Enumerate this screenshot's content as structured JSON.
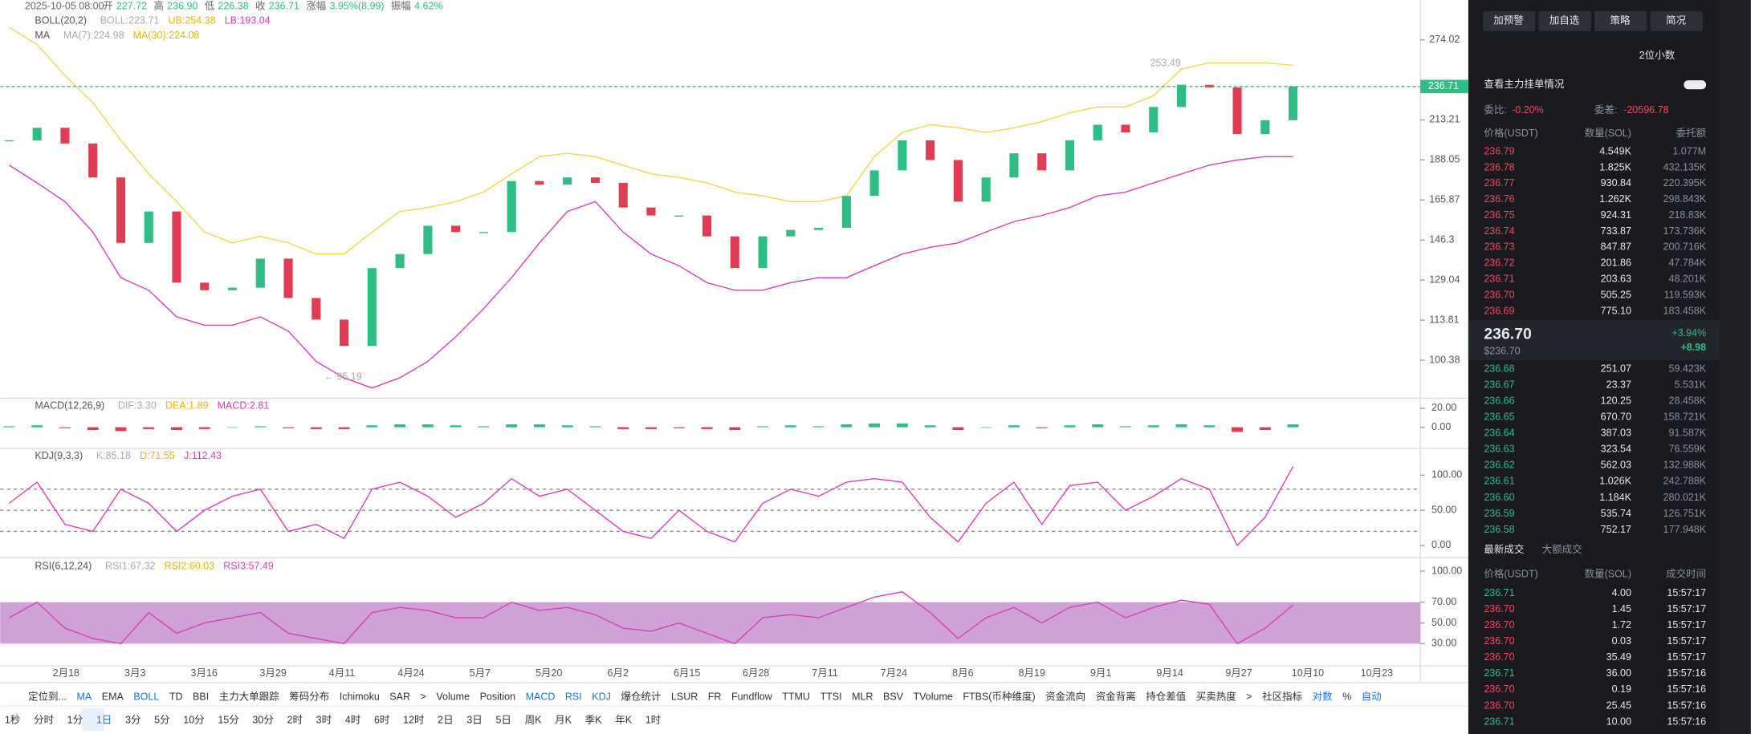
{
  "header": {
    "date": "2025-10-05 08:00",
    "fields": [
      {
        "label": "开",
        "value": "227.72"
      },
      {
        "label": "高",
        "value": "236.90"
      },
      {
        "label": "低",
        "value": "226.38"
      },
      {
        "label": "收",
        "value": "236.71"
      },
      {
        "label": "涨幅",
        "value": "3.95%(8.99)"
      },
      {
        "label": "振幅",
        "value": "4.62%"
      }
    ]
  },
  "indicators": [
    {
      "name": "BOLL(20,2)",
      "items": [
        {
          "text": "BOLL:223.71",
          "color": "#aaaaaa"
        },
        {
          "text": "UB:254.38",
          "color": "#e6b800"
        },
        {
          "text": "LB:193.04",
          "color": "#d63fb8"
        }
      ]
    },
    {
      "name": "MA",
      "items": [
        {
          "text": "MA(7):224.98",
          "color": "#aaaaaa"
        },
        {
          "text": "MA(30):224.08",
          "color": "#e6b800"
        }
      ]
    },
    {
      "name": "MACD(12,26,9)",
      "items": [
        {
          "text": "DIF:3.30",
          "color": "#aaaaaa"
        },
        {
          "text": "DEA:1.89",
          "color": "#e6b800"
        },
        {
          "text": "MACD:2.81",
          "color": "#d63fb8"
        }
      ]
    },
    {
      "name": "KDJ(9,3,3)",
      "items": [
        {
          "text": "K:85.18",
          "color": "#aaaaaa"
        },
        {
          "text": "D:71.55",
          "color": "#e6b800"
        },
        {
          "text": "J:112.43",
          "color": "#d63fb8"
        }
      ]
    },
    {
      "name": "RSI(6,12,24)",
      "items": [
        {
          "text": "RSI1:67.32",
          "color": "#aaaaaa"
        },
        {
          "text": "RSI2:60.03",
          "color": "#e6b800"
        },
        {
          "text": "RSI3:57.49",
          "color": "#d63fb8"
        }
      ]
    }
  ],
  "chart_data": {
    "type": "candlestick",
    "log_scale": true,
    "ylim": [
      89.1,
      297.7
    ],
    "yticks": [
      274.02,
      213.21,
      188.05,
      165.87,
      146.3,
      129.04,
      113.81,
      100.38
    ],
    "closes": [
      200,
      208,
      198,
      178,
      145,
      160,
      128,
      125,
      126,
      138,
      122,
      114,
      105,
      134,
      140,
      153,
      150,
      150,
      176,
      174,
      178,
      175,
      162,
      158,
      158,
      148,
      134,
      148,
      151,
      152,
      168,
      182,
      200,
      188,
      165,
      178,
      192,
      182,
      200,
      210,
      205,
      222,
      238,
      236,
      204,
      213,
      236.71
    ],
    "boll_upper": [
      285,
      270,
      245,
      225,
      200,
      180,
      165,
      150,
      145,
      148,
      145,
      140,
      140,
      150,
      160,
      162,
      165,
      170,
      180,
      190,
      192,
      190,
      185,
      180,
      178,
      175,
      170,
      168,
      165,
      165,
      168,
      190,
      205,
      210,
      208,
      205,
      208,
      212,
      218,
      222,
      222,
      230,
      250,
      255,
      255,
      255,
      253
    ],
    "boll_lower": [
      185,
      175,
      165,
      150,
      130,
      125,
      115,
      112,
      112,
      115,
      110,
      100,
      95,
      92,
      95,
      100,
      108,
      118,
      130,
      145,
      160,
      165,
      150,
      140,
      135,
      128,
      125,
      125,
      128,
      130,
      130,
      135,
      140,
      143,
      145,
      150,
      155,
      158,
      162,
      168,
      170,
      175,
      180,
      185,
      188,
      190,
      190
    ],
    "up_color": "#2ebd85",
    "down_color": "#e03c54",
    "price_line": 236.71,
    "annotations": [
      "253.49",
      "← 95.19"
    ],
    "dates": [
      "2月18",
      "3月3",
      "3月16",
      "3月29",
      "4月11",
      "4月24",
      "5月7",
      "5月20",
      "6月2",
      "6月15",
      "6月28",
      "7月11",
      "7月24",
      "8月6",
      "8月19",
      "9月1",
      "9月14",
      "9月27",
      "10月10",
      "10月23"
    ]
  },
  "macd": {
    "ylim": [
      -22.4,
      30.6
    ],
    "yticks": [
      {
        "value": 20,
        "label": "20.00"
      },
      {
        "value": 0,
        "label": "0.00"
      }
    ],
    "hist": [
      1,
      2,
      -1,
      -3,
      -4,
      -2,
      -3,
      -2,
      0,
      1,
      -1,
      -2,
      -2,
      2,
      3,
      3,
      2,
      1,
      3,
      3,
      2,
      1,
      -2,
      -2,
      -1,
      -2,
      -3,
      1,
      2,
      1,
      3,
      4,
      4,
      2,
      -3,
      0,
      2,
      -1,
      2,
      3,
      1,
      2,
      3,
      2,
      -5,
      -3,
      3
    ]
  },
  "kdj": {
    "ylim": [
      -17.5,
      138
    ],
    "yticks": [
      {
        "value": 100,
        "label": "100.00"
      },
      {
        "value": 50,
        "label": "50.00"
      },
      {
        "value": 0,
        "label": "0.00"
      }
    ],
    "dashed_levels": [
      80,
      50,
      20
    ],
    "j": [
      60,
      90,
      30,
      20,
      80,
      60,
      20,
      50,
      70,
      80,
      20,
      30,
      10,
      80,
      90,
      70,
      40,
      60,
      95,
      70,
      80,
      50,
      20,
      10,
      50,
      20,
      5,
      60,
      80,
      70,
      90,
      95,
      90,
      40,
      5,
      60,
      90,
      30,
      85,
      90,
      50,
      70,
      95,
      80,
      0,
      40,
      112.43
    ]
  },
  "rsi": {
    "ylim": [
      8.5,
      112.9
    ],
    "yticks": [
      {
        "value": 100,
        "label": "100.00"
      },
      {
        "value": 70,
        "label": "70.00"
      },
      {
        "value": 50,
        "label": "50.00"
      },
      {
        "value": 30,
        "label": "30.00"
      }
    ],
    "band": [
      30,
      70
    ],
    "rsi6": [
      55,
      70,
      45,
      35,
      30,
      60,
      40,
      50,
      55,
      60,
      40,
      35,
      30,
      60,
      65,
      62,
      55,
      55,
      70,
      62,
      65,
      58,
      45,
      42,
      50,
      40,
      30,
      55,
      58,
      55,
      65,
      75,
      80,
      60,
      35,
      55,
      65,
      50,
      65,
      70,
      55,
      65,
      72,
      68,
      30,
      45,
      67.32
    ]
  },
  "toolbar": {
    "items": [
      {
        "label": "定位到..."
      },
      {
        "label": "MA",
        "active": true
      },
      {
        "label": "EMA"
      },
      {
        "label": "BOLL",
        "active": true
      },
      {
        "label": "TD"
      },
      {
        "label": "BBI"
      },
      {
        "label": "主力大单跟踪"
      },
      {
        "label": "筹码分布"
      },
      {
        "label": "Ichimoku"
      },
      {
        "label": "SAR"
      },
      {
        "label": ">"
      },
      {
        "label": "Volume"
      },
      {
        "label": "Position"
      },
      {
        "label": "MACD",
        "active": true
      },
      {
        "label": "RSI",
        "active": true
      },
      {
        "label": "KDJ",
        "active": true
      },
      {
        "label": "爆仓统计"
      },
      {
        "label": "LSUR"
      },
      {
        "label": "FR"
      },
      {
        "label": "Fundflow"
      },
      {
        "label": "TTMU"
      },
      {
        "label": "TTSI"
      },
      {
        "label": "MLR"
      },
      {
        "label": "BSV"
      },
      {
        "label": "TVolume"
      },
      {
        "label": "FTBS(币种维度)"
      },
      {
        "label": "资金流向"
      },
      {
        "label": "资金背离"
      },
      {
        "label": "持仓差值"
      },
      {
        "label": "买卖热度"
      },
      {
        "label": ">"
      },
      {
        "label": "社区指标"
      },
      {
        "label": "对数",
        "active": true
      },
      {
        "label": "%"
      },
      {
        "label": "自动",
        "active": true
      }
    ],
    "intervals": [
      {
        "label": "1秒"
      },
      {
        "label": "分时"
      },
      {
        "label": "1分"
      },
      {
        "label": "1日",
        "active": true
      },
      {
        "label": "3分"
      },
      {
        "label": "5分"
      },
      {
        "label": "10分"
      },
      {
        "label": "15分"
      },
      {
        "label": "30分"
      },
      {
        "label": "2时"
      },
      {
        "label": "3时"
      },
      {
        "label": "4时"
      },
      {
        "label": "6时"
      },
      {
        "label": "12时"
      },
      {
        "label": "2日"
      },
      {
        "label": "3日"
      },
      {
        "label": "5日"
      },
      {
        "label": "周K"
      },
      {
        "label": "月K"
      },
      {
        "label": "季K"
      },
      {
        "label": "年K"
      },
      {
        "label": "1时"
      }
    ]
  },
  "panel": {
    "buttons": [
      "加预警",
      "加自选",
      "策略",
      "简况"
    ],
    "decimals": "2位小数",
    "depth_link": "查看主力挂单情况",
    "ratio_label": "委比:",
    "ratio": "-0.20%",
    "diff_label": "委差:",
    "diff": "-20596.78",
    "book_headers": [
      "价格(USDT)",
      "数量(SOL)",
      "委托额"
    ],
    "asks": [
      [
        "236.79",
        "4.549K",
        "1.077M"
      ],
      [
        "236.78",
        "1.825K",
        "432.135K"
      ],
      [
        "236.77",
        "930.84",
        "220.395K"
      ],
      [
        "236.76",
        "1.262K",
        "298.843K"
      ],
      [
        "236.75",
        "924.31",
        "218.83K"
      ],
      [
        "236.74",
        "733.87",
        "173.736K"
      ],
      [
        "236.73",
        "847.87",
        "200.716K"
      ],
      [
        "236.72",
        "201.86",
        "47.784K"
      ],
      [
        "236.71",
        "203.63",
        "48.201K"
      ],
      [
        "236.70",
        "505.25",
        "119.593K"
      ],
      [
        "236.69",
        "775.10",
        "183.458K"
      ]
    ],
    "last": "236.70",
    "last_usd": "$236.70",
    "change_pct": "+3.94%",
    "change": "+8.98",
    "bids": [
      [
        "236.68",
        "251.07",
        "59.423K"
      ],
      [
        "236.67",
        "23.37",
        "5.531K"
      ],
      [
        "236.66",
        "120.25",
        "28.458K"
      ],
      [
        "236.65",
        "670.70",
        "158.721K"
      ],
      [
        "236.64",
        "387.03",
        "91.587K"
      ],
      [
        "236.63",
        "323.54",
        "76.559K"
      ],
      [
        "236.62",
        "562.03",
        "132.988K"
      ],
      [
        "236.61",
        "1.026K",
        "242.788K"
      ],
      [
        "236.60",
        "1.184K",
        "280.021K"
      ],
      [
        "236.59",
        "535.74",
        "126.751K"
      ],
      [
        "236.58",
        "752.17",
        "177.948K"
      ]
    ],
    "trade_tabs": [
      "最新成交",
      "大额成交"
    ],
    "trade_headers": [
      "价格(USDT)",
      "数量(SOL)",
      "成交时间"
    ],
    "trades": [
      {
        "row": [
          "236.71",
          "4.00",
          "15:57:17"
        ],
        "side": "buy"
      },
      {
        "row": [
          "236.70",
          "1.45",
          "15:57:17"
        ],
        "side": "sell"
      },
      {
        "row": [
          "236.70",
          "1.72",
          "15:57:17"
        ],
        "side": "sell"
      },
      {
        "row": [
          "236.70",
          "0.03",
          "15:57:17"
        ],
        "side": "sell"
      },
      {
        "row": [
          "236.70",
          "35.49",
          "15:57:17"
        ],
        "side": "sell"
      },
      {
        "row": [
          "236.71",
          "36.00",
          "15:57:16"
        ],
        "side": "buy"
      },
      {
        "row": [
          "236.70",
          "0.19",
          "15:57:16"
        ],
        "side": "sell"
      },
      {
        "row": [
          "236.70",
          "25.45",
          "15:57:16"
        ],
        "side": "sell"
      },
      {
        "row": [
          "236.71",
          "10.00",
          "15:57:16"
        ],
        "side": "buy"
      }
    ]
  }
}
